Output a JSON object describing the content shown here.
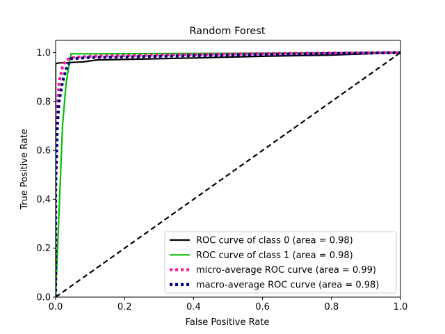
{
  "chart_data": {
    "type": "line",
    "title": "Random Forest",
    "xlabel": "False Positive Rate",
    "ylabel": "True Positive Rate",
    "xlim": [
      0.0,
      1.0
    ],
    "ylim": [
      0.0,
      1.05
    ],
    "xticks": [
      "0.0",
      "0.2",
      "0.4",
      "0.6",
      "0.8",
      "1.0"
    ],
    "yticks": [
      "0.0",
      "0.2",
      "0.4",
      "0.6",
      "0.8",
      "1.0"
    ],
    "xtick_values": [
      0.0,
      0.2,
      0.4,
      0.6,
      0.8,
      1.0
    ],
    "ytick_values": [
      0.0,
      0.2,
      0.4,
      0.6,
      0.8,
      1.0
    ],
    "grid": false,
    "legend_position": "lower-right",
    "series": [
      {
        "name": "ROC curve of class 0 (area = 0.98)",
        "color": "#000000",
        "style": "solid",
        "x": [
          0.0,
          0.0,
          0.01,
          0.02,
          0.03,
          0.05,
          0.08,
          0.12,
          0.2,
          0.4,
          0.6,
          0.8,
          1.0
        ],
        "y": [
          0.0,
          0.955,
          0.958,
          0.958,
          0.958,
          0.96,
          0.962,
          0.97,
          0.972,
          0.978,
          0.985,
          0.99,
          1.0
        ]
      },
      {
        "name": "ROC curve of class 1 (area = 0.98)",
        "color": "#00bf00",
        "style": "solid",
        "x": [
          0.0,
          0.01,
          0.02,
          0.03,
          0.04,
          0.045,
          0.1,
          0.3,
          0.5,
          0.7,
          0.9,
          1.0
        ],
        "y": [
          0.0,
          0.35,
          0.7,
          0.87,
          0.96,
          0.995,
          0.995,
          0.996,
          0.997,
          0.998,
          0.999,
          1.0
        ]
      },
      {
        "name": "micro-average ROC curve (area = 0.99)",
        "color": "#ff1493",
        "style": "dotted",
        "x": [
          0.0,
          0.0,
          0.005,
          0.01,
          0.02,
          0.03,
          0.05,
          0.1,
          0.3,
          0.5,
          0.7,
          0.9,
          1.0
        ],
        "y": [
          0.0,
          0.5,
          0.75,
          0.88,
          0.94,
          0.97,
          0.98,
          0.985,
          0.99,
          0.994,
          0.997,
          0.999,
          1.0
        ]
      },
      {
        "name": "macro-average ROC curve (area = 0.98)",
        "color": "#000080",
        "style": "dotted",
        "x": [
          0.0,
          0.0,
          0.005,
          0.01,
          0.02,
          0.03,
          0.045,
          0.1,
          0.3,
          0.5,
          0.7,
          0.9,
          1.0
        ],
        "y": [
          0.0,
          0.45,
          0.7,
          0.8,
          0.88,
          0.93,
          0.975,
          0.98,
          0.985,
          0.99,
          0.994,
          0.998,
          1.0
        ]
      },
      {
        "name": "",
        "color": "#000000",
        "style": "dashed",
        "x": [
          0.0,
          1.0
        ],
        "y": [
          0.0,
          1.0
        ]
      }
    ]
  }
}
